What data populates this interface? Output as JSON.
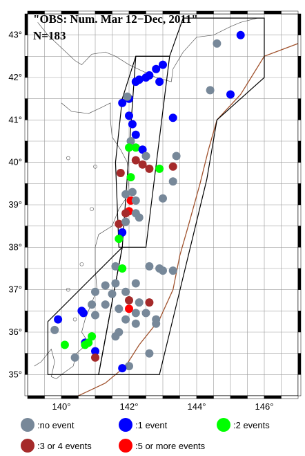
{
  "title": {
    "line1": "\"OBS: Num. Mar 12−Dec, 2011\"",
    "line2": "N=183"
  },
  "axes": {
    "lon_range": [
      139.0,
      147.0
    ],
    "lat_range": [
      34.5,
      43.5
    ],
    "lon_ticks": [
      140,
      142,
      144,
      146
    ],
    "lat_ticks": [
      35,
      36,
      37,
      38,
      39,
      40,
      41,
      42,
      43
    ],
    "lon_tick_labels": [
      "140°",
      "142°",
      "144°",
      "146°"
    ],
    "lat_tick_labels": [
      "35°",
      "36°",
      "37°",
      "38°",
      "39°",
      "40°",
      "41°",
      "42°",
      "43°"
    ],
    "grid": true,
    "grid_step_deg": 0.5
  },
  "colors": {
    "no_event": "#778899",
    "one_event": "#0000ff",
    "two_events": "#00ff00",
    "three_four_events": "#a52a2a",
    "five_plus_events": "#ff0000",
    "coastline": "#555555",
    "trench": "#a0522d",
    "polygon": "#000000"
  },
  "legend": [
    {
      "key": "no_event",
      "label": ":no event"
    },
    {
      "key": "one_event",
      "label": ":1 event"
    },
    {
      "key": "two_events",
      "label": ":2 events"
    },
    {
      "key": "three_four_events",
      "label": ":3 or 4 events"
    },
    {
      "key": "five_plus_events",
      "label": ":5 or more events"
    }
  ],
  "polygons": [
    [
      [
        141.8,
        41.5
      ],
      [
        142.2,
        42.5
      ],
      [
        143.2,
        42.5
      ],
      [
        142.5,
        38.0
      ],
      [
        141.7,
        38.0
      ],
      [
        141.6,
        40.0
      ]
    ],
    [
      [
        142.2,
        42.5
      ],
      [
        143.2,
        42.5
      ],
      [
        143.6,
        43.4
      ],
      [
        146.0,
        43.4
      ],
      [
        146.0,
        42.0
      ],
      [
        144.6,
        41.0
      ],
      [
        144.3,
        39.6
      ],
      [
        142.9,
        35.0
      ],
      [
        141.1,
        35.0
      ],
      [
        141.8,
        38.0
      ]
    ],
    [
      [
        141.8,
        38.0
      ],
      [
        139.6,
        36.25
      ],
      [
        139.6,
        35.0
      ],
      [
        141.1,
        35.0
      ]
    ]
  ],
  "stations": [
    {
      "lon": 145.3,
      "lat": 43.0,
      "cat": "one_event"
    },
    {
      "lon": 144.6,
      "lat": 42.8,
      "cat": "no_event"
    },
    {
      "lon": 143.0,
      "lat": 42.3,
      "cat": "one_event"
    },
    {
      "lon": 142.8,
      "lat": 42.2,
      "cat": "one_event"
    },
    {
      "lon": 142.6,
      "lat": 42.05,
      "cat": "one_event"
    },
    {
      "lon": 142.5,
      "lat": 42.0,
      "cat": "one_event"
    },
    {
      "lon": 142.3,
      "lat": 41.95,
      "cat": "one_event"
    },
    {
      "lon": 142.2,
      "lat": 41.9,
      "cat": "one_event"
    },
    {
      "lon": 142.9,
      "lat": 41.9,
      "cat": "one_event"
    },
    {
      "lon": 144.4,
      "lat": 41.7,
      "cat": "no_event"
    },
    {
      "lon": 145.0,
      "lat": 41.6,
      "cat": "one_event"
    },
    {
      "lon": 142.0,
      "lat": 41.5,
      "cat": "one_event"
    },
    {
      "lon": 141.8,
      "lat": 41.4,
      "cat": "one_event"
    },
    {
      "lon": 141.95,
      "lat": 41.55,
      "cat": "no_event"
    },
    {
      "lon": 143.3,
      "lat": 41.05,
      "cat": "one_event"
    },
    {
      "lon": 142.0,
      "lat": 41.1,
      "cat": "one_event"
    },
    {
      "lon": 142.1,
      "lat": 40.9,
      "cat": "one_event"
    },
    {
      "lon": 142.2,
      "lat": 40.65,
      "cat": "one_event"
    },
    {
      "lon": 142.05,
      "lat": 40.5,
      "cat": "no_event"
    },
    {
      "lon": 142.2,
      "lat": 40.35,
      "cat": "two_events"
    },
    {
      "lon": 142.0,
      "lat": 40.35,
      "cat": "two_events"
    },
    {
      "lon": 142.4,
      "lat": 40.3,
      "cat": "one_event"
    },
    {
      "lon": 142.5,
      "lat": 40.15,
      "cat": "no_event"
    },
    {
      "lon": 142.2,
      "lat": 40.05,
      "cat": "three_four_events"
    },
    {
      "lon": 142.4,
      "lat": 39.95,
      "cat": "three_four_events"
    },
    {
      "lon": 142.6,
      "lat": 39.85,
      "cat": "three_four_events"
    },
    {
      "lon": 142.9,
      "lat": 39.85,
      "cat": "two_events"
    },
    {
      "lon": 143.3,
      "lat": 39.9,
      "cat": "three_four_events"
    },
    {
      "lon": 143.4,
      "lat": 40.15,
      "cat": "no_event"
    },
    {
      "lon": 141.75,
      "lat": 39.75,
      "cat": "three_four_events"
    },
    {
      "lon": 142.05,
      "lat": 39.65,
      "cat": "two_events"
    },
    {
      "lon": 143.3,
      "lat": 39.55,
      "cat": "no_event"
    },
    {
      "lon": 142.1,
      "lat": 39.3,
      "cat": "no_event"
    },
    {
      "lon": 141.9,
      "lat": 39.25,
      "cat": "no_event"
    },
    {
      "lon": 143.0,
      "lat": 39.15,
      "cat": "no_event"
    },
    {
      "lon": 142.05,
      "lat": 39.1,
      "cat": "five_plus_events"
    },
    {
      "lon": 142.2,
      "lat": 39.1,
      "cat": "no_event"
    },
    {
      "lon": 142.0,
      "lat": 38.85,
      "cat": "five_plus_events"
    },
    {
      "lon": 141.9,
      "lat": 38.8,
      "cat": "three_four_events"
    },
    {
      "lon": 142.2,
      "lat": 38.8,
      "cat": "no_event"
    },
    {
      "lon": 142.3,
      "lat": 38.7,
      "cat": "no_event"
    },
    {
      "lon": 141.7,
      "lat": 38.55,
      "cat": "three_four_events"
    },
    {
      "lon": 141.9,
      "lat": 38.6,
      "cat": "no_event"
    },
    {
      "lon": 141.8,
      "lat": 38.35,
      "cat": "one_event"
    },
    {
      "lon": 141.7,
      "lat": 38.2,
      "cat": "two_events"
    },
    {
      "lon": 141.6,
      "lat": 37.55,
      "cat": "no_event"
    },
    {
      "lon": 141.8,
      "lat": 37.5,
      "cat": "two_events"
    },
    {
      "lon": 142.6,
      "lat": 37.55,
      "cat": "no_event"
    },
    {
      "lon": 142.9,
      "lat": 37.5,
      "cat": "no_event"
    },
    {
      "lon": 143.0,
      "lat": 37.45,
      "cat": "no_event"
    },
    {
      "lon": 143.3,
      "lat": 37.45,
      "cat": "no_event"
    },
    {
      "lon": 141.3,
      "lat": 37.1,
      "cat": "no_event"
    },
    {
      "lon": 141.6,
      "lat": 37.15,
      "cat": "no_event"
    },
    {
      "lon": 142.2,
      "lat": 37.15,
      "cat": "no_event"
    },
    {
      "lon": 141.0,
      "lat": 36.95,
      "cat": "no_event"
    },
    {
      "lon": 141.5,
      "lat": 36.9,
      "cat": "no_event"
    },
    {
      "lon": 141.9,
      "lat": 36.95,
      "cat": "no_event"
    },
    {
      "lon": 142.0,
      "lat": 36.75,
      "cat": "three_four_events"
    },
    {
      "lon": 142.3,
      "lat": 36.7,
      "cat": "no_event"
    },
    {
      "lon": 142.6,
      "lat": 36.7,
      "cat": "three_four_events"
    },
    {
      "lon": 140.9,
      "lat": 36.65,
      "cat": "no_event"
    },
    {
      "lon": 141.3,
      "lat": 36.65,
      "cat": "no_event"
    },
    {
      "lon": 141.7,
      "lat": 36.55,
      "cat": "no_event"
    },
    {
      "lon": 140.6,
      "lat": 36.5,
      "cat": "one_event"
    },
    {
      "lon": 140.65,
      "lat": 36.45,
      "cat": "one_event"
    },
    {
      "lon": 141.0,
      "lat": 36.4,
      "cat": "no_event"
    },
    {
      "lon": 142.0,
      "lat": 36.55,
      "cat": "five_plus_events"
    },
    {
      "lon": 142.2,
      "lat": 36.45,
      "cat": "no_event"
    },
    {
      "lon": 142.5,
      "lat": 36.45,
      "cat": "no_event"
    },
    {
      "lon": 139.9,
      "lat": 36.3,
      "cat": "one_event"
    },
    {
      "lon": 141.9,
      "lat": 36.3,
      "cat": "no_event"
    },
    {
      "lon": 142.8,
      "lat": 36.3,
      "cat": "no_event"
    },
    {
      "lon": 142.2,
      "lat": 36.2,
      "cat": "no_event"
    },
    {
      "lon": 142.8,
      "lat": 36.2,
      "cat": "no_event"
    },
    {
      "lon": 139.8,
      "lat": 36.05,
      "cat": "no_event"
    },
    {
      "lon": 141.6,
      "lat": 35.9,
      "cat": "no_event"
    },
    {
      "lon": 141.7,
      "lat": 36.0,
      "cat": "no_event"
    },
    {
      "lon": 140.9,
      "lat": 35.9,
      "cat": "two_events"
    },
    {
      "lon": 140.7,
      "lat": 35.75,
      "cat": "one_event"
    },
    {
      "lon": 140.8,
      "lat": 35.75,
      "cat": "two_events"
    },
    {
      "lon": 140.1,
      "lat": 35.7,
      "cat": "two_events"
    },
    {
      "lon": 140.7,
      "lat": 35.7,
      "cat": "two_events"
    },
    {
      "lon": 141.0,
      "lat": 35.55,
      "cat": "one_event"
    },
    {
      "lon": 140.4,
      "lat": 35.4,
      "cat": "no_event"
    },
    {
      "lon": 141.0,
      "lat": 35.4,
      "cat": "three_four_events"
    },
    {
      "lon": 142.6,
      "lat": 35.5,
      "cat": "no_event"
    },
    {
      "lon": 142.0,
      "lat": 35.2,
      "cat": "no_event"
    },
    {
      "lon": 141.8,
      "lat": 35.15,
      "cat": "one_event"
    }
  ]
}
